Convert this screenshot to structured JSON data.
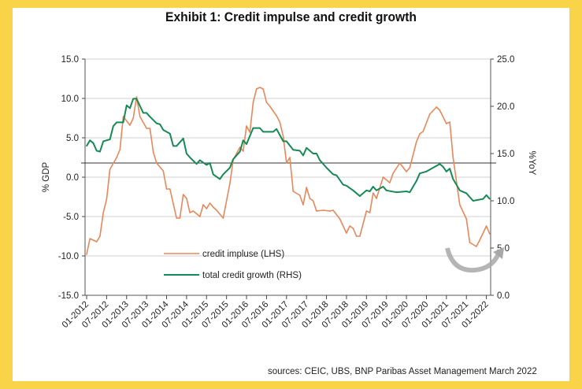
{
  "title": "Exhibit 1: Credit impulse and credit growth",
  "source": "sources: CEIC, UBS, BNP Paribas Asset Management   March 2022",
  "colors": {
    "background_frame": "#FAD448",
    "credit_impulse": "#E8875A",
    "total_credit_growth": "#168A55",
    "reference_line": "#333333",
    "grid": "#D9D9D9"
  },
  "decoration": "gray-curved-arrow-icon",
  "chart_data": {
    "type": "line",
    "title": "Exhibit 1: Credit impulse and credit growth",
    "ylabel_left": "% GDP",
    "ylabel_right": "%YoY",
    "ylim_left": [
      -15,
      15
    ],
    "ylim_right": [
      0,
      25
    ],
    "yticks_left": [
      "15.0",
      "10.0",
      "5.0",
      "0.0",
      "-5.0",
      "-10.0",
      "-15.0"
    ],
    "yticks_right": [
      "25.0",
      "20.0",
      "15.0",
      "10.0",
      "5.0",
      "0.0"
    ],
    "xlim": [
      "2012-01",
      "2022-03"
    ],
    "xticks": [
      "01-2012",
      "07-2012",
      "01-2013",
      "07-2013",
      "01-2014",
      "07-2014",
      "01-2015",
      "07-2015",
      "01-2016",
      "07-2016",
      "01-2017",
      "07-2017",
      "01-2018",
      "07-2018",
      "01-2019",
      "07-2019",
      "01-2020",
      "07-2020",
      "01-2021",
      "07-2021",
      "01-2022"
    ],
    "grid": true,
    "legend_position": "bottom-left",
    "reference_line_rhs": 14.0,
    "series": [
      {
        "name": "credit impluse (LHS)",
        "axis": "left",
        "points": [
          [
            "2012-01",
            -9.8
          ],
          [
            "2012-02",
            -7.8
          ],
          [
            "2012-04",
            -8.2
          ],
          [
            "2012-05",
            -7.5
          ],
          [
            "2012-06",
            -4.5
          ],
          [
            "2012-07",
            -2.8
          ],
          [
            "2012-08",
            1.0
          ],
          [
            "2012-10",
            2.5
          ],
          [
            "2012-11",
            3.5
          ],
          [
            "2012-12",
            7.7
          ],
          [
            "2013-02",
            6.6
          ],
          [
            "2013-03",
            7.5
          ],
          [
            "2013-04",
            10.2
          ],
          [
            "2013-05",
            7.7
          ],
          [
            "2013-07",
            6.2
          ],
          [
            "2013-08",
            6.2
          ],
          [
            "2013-09",
            3.2
          ],
          [
            "2013-10",
            1.8
          ],
          [
            "2013-12",
            0.8
          ],
          [
            "2014-01",
            -1.5
          ],
          [
            "2014-02",
            -1.5
          ],
          [
            "2014-04",
            -5.2
          ],
          [
            "2014-05",
            -5.2
          ],
          [
            "2014-06",
            -2.2
          ],
          [
            "2014-07",
            -2.7
          ],
          [
            "2014-08",
            -4.5
          ],
          [
            "2014-09",
            -4.3
          ],
          [
            "2014-11",
            -5.0
          ],
          [
            "2014-12",
            -3.5
          ],
          [
            "2015-01",
            -4.0
          ],
          [
            "2015-02",
            -3.3
          ],
          [
            "2015-03",
            -3.8
          ],
          [
            "2015-04",
            -4.2
          ],
          [
            "2015-06",
            -5.2
          ],
          [
            "2015-08",
            -0.8
          ],
          [
            "2015-09",
            2.2
          ],
          [
            "2015-11",
            3.8
          ],
          [
            "2015-12",
            3.3
          ],
          [
            "2016-01",
            6.5
          ],
          [
            "2016-02",
            5.7
          ],
          [
            "2016-03",
            9.5
          ],
          [
            "2016-04",
            11.2
          ],
          [
            "2016-05",
            11.4
          ],
          [
            "2016-06",
            11.2
          ],
          [
            "2016-07",
            9.5
          ],
          [
            "2016-08",
            9.0
          ],
          [
            "2016-10",
            7.8
          ],
          [
            "2016-11",
            7.0
          ],
          [
            "2016-12",
            5.2
          ],
          [
            "2017-01",
            1.8
          ],
          [
            "2017-02",
            2.5
          ],
          [
            "2017-03",
            -1.8
          ],
          [
            "2017-05",
            -2.3
          ],
          [
            "2017-06",
            -3.5
          ],
          [
            "2017-07",
            -1.3
          ],
          [
            "2017-08",
            -2.7
          ],
          [
            "2017-09",
            -3.0
          ],
          [
            "2017-10",
            -4.3
          ],
          [
            "2017-12",
            -4.2
          ],
          [
            "2018-02",
            -4.3
          ],
          [
            "2018-03",
            -4.2
          ],
          [
            "2018-05",
            -5.3
          ],
          [
            "2018-07",
            -7.1
          ],
          [
            "2018-08",
            -6.2
          ],
          [
            "2018-09",
            -6.5
          ],
          [
            "2018-10",
            -7.5
          ],
          [
            "2018-11",
            -7.5
          ],
          [
            "2019-01",
            -4.3
          ],
          [
            "2019-02",
            -4.5
          ],
          [
            "2019-03",
            -2.0
          ],
          [
            "2019-04",
            -2.7
          ],
          [
            "2019-06",
            0.0
          ],
          [
            "2019-08",
            -0.7
          ],
          [
            "2019-09",
            0.5
          ],
          [
            "2019-11",
            1.8
          ],
          [
            "2020-01",
            0.7
          ],
          [
            "2020-02",
            1.2
          ],
          [
            "2020-04",
            4.5
          ],
          [
            "2020-05",
            5.5
          ],
          [
            "2020-06",
            5.8
          ],
          [
            "2020-08",
            8.0
          ],
          [
            "2020-10",
            8.9
          ],
          [
            "2020-11",
            8.5
          ],
          [
            "2021-01",
            6.8
          ],
          [
            "2021-02",
            7.0
          ],
          [
            "2021-03",
            2.5
          ],
          [
            "2021-05",
            -3.5
          ],
          [
            "2021-07",
            -5.3
          ],
          [
            "2021-08",
            -8.3
          ],
          [
            "2021-10",
            -8.8
          ],
          [
            "2021-11",
            -8.0
          ],
          [
            "2022-01",
            -6.2
          ],
          [
            "2022-02",
            -7.2
          ]
        ]
      },
      {
        "name": "total credit growth (RHS)",
        "axis": "right",
        "points": [
          [
            "2012-01",
            15.8
          ],
          [
            "2012-02",
            16.4
          ],
          [
            "2012-03",
            16.1
          ],
          [
            "2012-04",
            15.3
          ],
          [
            "2012-05",
            15.2
          ],
          [
            "2012-06",
            16.3
          ],
          [
            "2012-08",
            16.5
          ],
          [
            "2012-09",
            17.9
          ],
          [
            "2012-10",
            18.3
          ],
          [
            "2012-12",
            18.3
          ],
          [
            "2013-01",
            20.1
          ],
          [
            "2013-02",
            19.8
          ],
          [
            "2013-03",
            20.8
          ],
          [
            "2013-04",
            20.8
          ],
          [
            "2013-06",
            19.3
          ],
          [
            "2013-07",
            19.3
          ],
          [
            "2013-08",
            18.9
          ],
          [
            "2013-10",
            18.2
          ],
          [
            "2013-11",
            18.1
          ],
          [
            "2013-12",
            17.5
          ],
          [
            "2014-02",
            17.1
          ],
          [
            "2014-03",
            15.8
          ],
          [
            "2014-04",
            15.8
          ],
          [
            "2014-06",
            16.6
          ],
          [
            "2014-07",
            15.0
          ],
          [
            "2014-08",
            14.6
          ],
          [
            "2014-10",
            13.9
          ],
          [
            "2014-11",
            14.3
          ],
          [
            "2015-01",
            13.8
          ],
          [
            "2015-02",
            14.0
          ],
          [
            "2015-03",
            12.8
          ],
          [
            "2015-05",
            12.3
          ],
          [
            "2015-06",
            12.8
          ],
          [
            "2015-08",
            13.5
          ],
          [
            "2015-09",
            14.4
          ],
          [
            "2015-11",
            15.2
          ],
          [
            "2015-12",
            16.4
          ],
          [
            "2016-01",
            16.0
          ],
          [
            "2016-03",
            17.7
          ],
          [
            "2016-05",
            17.7
          ],
          [
            "2016-06",
            17.3
          ],
          [
            "2016-09",
            17.3
          ],
          [
            "2016-10",
            17.6
          ],
          [
            "2016-12",
            16.3
          ],
          [
            "2017-01",
            16.3
          ],
          [
            "2017-03",
            15.4
          ],
          [
            "2017-05",
            15.3
          ],
          [
            "2017-06",
            14.8
          ],
          [
            "2017-07",
            15.6
          ],
          [
            "2017-09",
            15.0
          ],
          [
            "2017-10",
            15.0
          ],
          [
            "2017-11",
            14.3
          ],
          [
            "2018-01",
            13.5
          ],
          [
            "2018-03",
            12.8
          ],
          [
            "2018-04",
            12.7
          ],
          [
            "2018-06",
            11.7
          ],
          [
            "2018-07",
            11.6
          ],
          [
            "2018-09",
            11.1
          ],
          [
            "2018-11",
            10.5
          ],
          [
            "2019-01",
            11.1
          ],
          [
            "2019-02",
            11.0
          ],
          [
            "2019-03",
            11.5
          ],
          [
            "2019-04",
            11.1
          ],
          [
            "2019-06",
            11.5
          ],
          [
            "2019-07",
            11.1
          ],
          [
            "2019-10",
            10.9
          ],
          [
            "2020-01",
            11.0
          ],
          [
            "2020-02",
            10.9
          ],
          [
            "2020-04",
            12.1
          ],
          [
            "2020-05",
            12.9
          ],
          [
            "2020-07",
            13.1
          ],
          [
            "2020-09",
            13.5
          ],
          [
            "2020-11",
            13.9
          ],
          [
            "2020-12",
            13.6
          ],
          [
            "2021-01",
            13.1
          ],
          [
            "2021-02",
            13.4
          ],
          [
            "2021-03",
            12.3
          ],
          [
            "2021-05",
            11.1
          ],
          [
            "2021-07",
            10.8
          ],
          [
            "2021-09",
            10.0
          ],
          [
            "2021-12",
            10.2
          ],
          [
            "2022-01",
            10.6
          ],
          [
            "2022-02",
            10.2
          ]
        ]
      }
    ]
  }
}
